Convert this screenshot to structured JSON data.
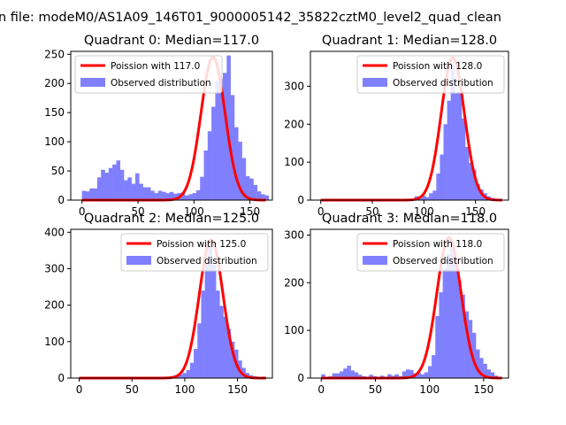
{
  "figure": {
    "suptitle": "n file: modeM0/AS1A09_146T01_9000005142_35822cztM0_level2_quad_clean"
  },
  "chart_data": [
    {
      "type": "bar",
      "title": "Quadrant 0: Median=117.0",
      "legend": {
        "line_label": "Poission with 117.0",
        "hist_label": "Observed distribution",
        "placement": "upper-left"
      },
      "xlim": [
        -10,
        170
      ],
      "ylim": [
        0,
        255
      ],
      "xticks": [
        0,
        50,
        100,
        150
      ],
      "yticks": [
        0,
        50,
        100,
        150,
        200,
        250
      ],
      "line_mean": 117.0,
      "line_peak": 245,
      "line_sigma": 10.8,
      "bins": [
        [
          0,
          16
        ],
        [
          3.4,
          15
        ],
        [
          6.8,
          20
        ],
        [
          10.2,
          20
        ],
        [
          13.6,
          39
        ],
        [
          17,
          52
        ],
        [
          20.4,
          47
        ],
        [
          23.8,
          55
        ],
        [
          27.2,
          61
        ],
        [
          30.6,
          68
        ],
        [
          34,
          52
        ],
        [
          37.4,
          34
        ],
        [
          40.8,
          39
        ],
        [
          44.2,
          28
        ],
        [
          47.6,
          46
        ],
        [
          51,
          28
        ],
        [
          54.4,
          22
        ],
        [
          57.8,
          22
        ],
        [
          61.2,
          16
        ],
        [
          64.6,
          12
        ],
        [
          68,
          16
        ],
        [
          71.4,
          14
        ],
        [
          74.8,
          12
        ],
        [
          78.2,
          14
        ],
        [
          81.6,
          11
        ],
        [
          85,
          12
        ],
        [
          88.4,
          13
        ],
        [
          91.8,
          8
        ],
        [
          95.2,
          10
        ],
        [
          98.6,
          12
        ],
        [
          102,
          17
        ],
        [
          105.4,
          40
        ],
        [
          108.8,
          85
        ],
        [
          112.2,
          118
        ],
        [
          115.6,
          160
        ],
        [
          119,
          205
        ],
        [
          122.4,
          208
        ],
        [
          125.8,
          218
        ],
        [
          129.2,
          248
        ],
        [
          132.6,
          180
        ],
        [
          136,
          125
        ],
        [
          139.4,
          100
        ],
        [
          142.8,
          72
        ],
        [
          146.2,
          41
        ],
        [
          149.6,
          37
        ],
        [
          153,
          26
        ],
        [
          156.4,
          15
        ],
        [
          159.8,
          10
        ],
        [
          163.2,
          8
        ]
      ]
    },
    {
      "type": "bar",
      "title": "Quadrant 1: Median=128.0",
      "legend": {
        "line_label": "Poission with 128.0",
        "hist_label": "Observed distribution",
        "placement": "upper-right"
      },
      "xlim": [
        -10,
        182
      ],
      "ylim": [
        0,
        392
      ],
      "xticks": [
        0,
        50,
        100,
        150
      ],
      "yticks": [
        0,
        100,
        200,
        300
      ],
      "line_mean": 128.0,
      "line_peak": 375,
      "line_sigma": 11.3,
      "bins": [
        [
          0,
          1
        ],
        [
          3.5,
          1
        ],
        [
          7,
          1
        ],
        [
          10.5,
          1
        ],
        [
          14,
          1
        ],
        [
          17.5,
          1
        ],
        [
          21,
          1
        ],
        [
          24.5,
          1
        ],
        [
          28,
          1
        ],
        [
          31.5,
          1
        ],
        [
          35,
          1
        ],
        [
          38.5,
          1
        ],
        [
          42,
          1
        ],
        [
          45.5,
          1
        ],
        [
          49,
          1
        ],
        [
          52.5,
          1
        ],
        [
          56,
          1
        ],
        [
          59.5,
          1
        ],
        [
          63,
          1
        ],
        [
          66.5,
          1
        ],
        [
          70,
          1
        ],
        [
          73.5,
          1
        ],
        [
          77,
          1
        ],
        [
          80.5,
          2
        ],
        [
          84,
          1
        ],
        [
          87.5,
          1
        ],
        [
          91,
          10
        ],
        [
          94.5,
          5
        ],
        [
          98,
          12
        ],
        [
          101.5,
          8
        ],
        [
          105,
          18
        ],
        [
          108.5,
          25
        ],
        [
          112,
          70
        ],
        [
          115.5,
          120
        ],
        [
          119,
          200
        ],
        [
          122.5,
          262
        ],
        [
          126,
          355
        ],
        [
          129.5,
          282
        ],
        [
          133,
          285
        ],
        [
          136.5,
          215
        ],
        [
          140,
          140
        ],
        [
          143.5,
          98
        ],
        [
          147,
          80
        ],
        [
          150.5,
          42
        ],
        [
          154,
          28
        ],
        [
          157.5,
          18
        ],
        [
          161,
          10
        ],
        [
          164.5,
          6
        ]
      ]
    },
    {
      "type": "bar",
      "title": "Quadrant 2: Median=125.0",
      "legend": {
        "line_label": "Poission with 125.0",
        "hist_label": "Observed distribution",
        "placement": "upper-right"
      },
      "xlim": [
        -8,
        183
      ],
      "ylim": [
        0,
        408
      ],
      "xticks": [
        0,
        50,
        100,
        150
      ],
      "yticks": [
        0,
        100,
        200,
        300,
        400
      ],
      "line_mean": 125.0,
      "line_peak": 380,
      "line_sigma": 11.2,
      "bins": [
        [
          0,
          1
        ],
        [
          3.5,
          1
        ],
        [
          7,
          1
        ],
        [
          10.5,
          1
        ],
        [
          14,
          1
        ],
        [
          17.5,
          1
        ],
        [
          21,
          1
        ],
        [
          24.5,
          1
        ],
        [
          28,
          1
        ],
        [
          31.5,
          1
        ],
        [
          35,
          1
        ],
        [
          38.5,
          1
        ],
        [
          42,
          1
        ],
        [
          45.5,
          1
        ],
        [
          49,
          1
        ],
        [
          52.5,
          1
        ],
        [
          56,
          1
        ],
        [
          59.5,
          1
        ],
        [
          63,
          1
        ],
        [
          66.5,
          1
        ],
        [
          70,
          1
        ],
        [
          73.5,
          1
        ],
        [
          77,
          2
        ],
        [
          80.5,
          3
        ],
        [
          84,
          4
        ],
        [
          87.5,
          6
        ],
        [
          91,
          8
        ],
        [
          94.5,
          10
        ],
        [
          98,
          14
        ],
        [
          101.5,
          22
        ],
        [
          105,
          42
        ],
        [
          108.5,
          80
        ],
        [
          112,
          150
        ],
        [
          115.5,
          240
        ],
        [
          119,
          315
        ],
        [
          122.5,
          360
        ],
        [
          126,
          310
        ],
        [
          129.5,
          240
        ],
        [
          133,
          198
        ],
        [
          136.5,
          168
        ],
        [
          140,
          135
        ],
        [
          143.5,
          100
        ],
        [
          147,
          78
        ],
        [
          150.5,
          48
        ],
        [
          154,
          28
        ],
        [
          157.5,
          14
        ],
        [
          161,
          8
        ],
        [
          164.5,
          5
        ],
        [
          168,
          2
        ]
      ]
    },
    {
      "type": "bar",
      "title": "Quadrant 3: Median=118.0",
      "legend": {
        "line_label": "Poission with 118.0",
        "hist_label": "Observed distribution",
        "placement": "upper-right"
      },
      "xlim": [
        -10,
        173
      ],
      "ylim": [
        0,
        312
      ],
      "xticks": [
        0,
        50,
        100,
        150
      ],
      "yticks": [
        0,
        100,
        200,
        300
      ],
      "line_mean": 118.0,
      "line_peak": 295,
      "line_sigma": 11.2,
      "bins": [
        [
          0,
          8
        ],
        [
          3.4,
          2
        ],
        [
          6.8,
          4
        ],
        [
          10.2,
          10
        ],
        [
          13.6,
          10
        ],
        [
          17,
          14
        ],
        [
          20.4,
          20
        ],
        [
          23.8,
          26
        ],
        [
          27.2,
          16
        ],
        [
          30.6,
          12
        ],
        [
          34,
          7
        ],
        [
          37.4,
          4
        ],
        [
          40.8,
          3
        ],
        [
          44.2,
          7
        ],
        [
          47.6,
          4
        ],
        [
          51,
          2
        ],
        [
          54.4,
          5
        ],
        [
          57.8,
          3
        ],
        [
          61.2,
          8
        ],
        [
          64.6,
          5
        ],
        [
          68,
          8
        ],
        [
          71.4,
          4
        ],
        [
          74.8,
          14
        ],
        [
          78.2,
          18
        ],
        [
          81.6,
          17
        ],
        [
          85,
          10
        ],
        [
          88.4,
          12
        ],
        [
          91.8,
          8
        ],
        [
          95.2,
          12
        ],
        [
          98.6,
          25
        ],
        [
          102,
          48
        ],
        [
          105.4,
          130
        ],
        [
          108.8,
          180
        ],
        [
          112.2,
          230
        ],
        [
          115.6,
          260
        ],
        [
          119,
          288
        ],
        [
          122.4,
          240
        ],
        [
          125.8,
          205
        ],
        [
          129.2,
          175
        ],
        [
          132.6,
          140
        ],
        [
          136,
          122
        ],
        [
          139.4,
          95
        ],
        [
          142.8,
          60
        ],
        [
          146.2,
          42
        ],
        [
          149.6,
          30
        ],
        [
          153,
          18
        ],
        [
          156.4,
          12
        ],
        [
          159.8,
          5
        ]
      ]
    }
  ],
  "colors": {
    "histogram": "#8080ff",
    "poisson_line": "#ff0000",
    "axes": "#000000"
  }
}
